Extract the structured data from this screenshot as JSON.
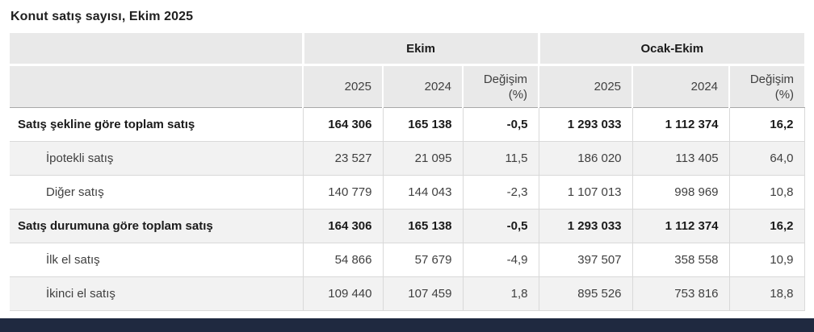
{
  "page": {
    "title": "Konut satış sayısı, Ekim 2025"
  },
  "colors": {
    "header_bg": "#e9e9e9",
    "stripe_bg": "#f2f2f2",
    "border": "#d9d9d9",
    "header_border": "#a8a8a8",
    "footer_bar": "#1f2940",
    "text": "#3f3f3f",
    "text_bold": "#1a1a1a"
  },
  "table": {
    "column_groups": [
      {
        "label": "Ekim"
      },
      {
        "label": "Ocak-Ekim"
      }
    ],
    "sub_headers": [
      {
        "label": "2025"
      },
      {
        "label": "2024"
      },
      {
        "line1": "Değişim",
        "line2": "(%)"
      },
      {
        "label": "2025"
      },
      {
        "label": "2024"
      },
      {
        "line1": "Değişim",
        "line2": "(%)"
      }
    ],
    "rows": [
      {
        "label": "Satış şekline göre toplam satış",
        "bold": true,
        "indent": false,
        "values": [
          "164 306",
          "165 138",
          "-0,5",
          "1 293 033",
          "1 112 374",
          "16,2"
        ]
      },
      {
        "label": "İpotekli satış",
        "bold": false,
        "indent": true,
        "values": [
          "23 527",
          "21 095",
          "11,5",
          "186 020",
          "113 405",
          "64,0"
        ]
      },
      {
        "label": "Diğer satış",
        "bold": false,
        "indent": true,
        "values": [
          "140 779",
          "144 043",
          "-2,3",
          "1 107 013",
          "998 969",
          "10,8"
        ]
      },
      {
        "label": "Satış durumuna göre toplam satış",
        "bold": true,
        "indent": false,
        "values": [
          "164 306",
          "165 138",
          "-0,5",
          "1 293 033",
          "1 112 374",
          "16,2"
        ]
      },
      {
        "label": "İlk el satış",
        "bold": false,
        "indent": true,
        "values": [
          "54 866",
          "57 679",
          "-4,9",
          "397 507",
          "358 558",
          "10,9"
        ]
      },
      {
        "label": "İkinci el satış",
        "bold": false,
        "indent": true,
        "values": [
          "109 440",
          "107 459",
          "1,8",
          "895 526",
          "753 816",
          "18,8"
        ]
      }
    ]
  },
  "chart_data": {
    "type": "table",
    "title": "Konut satış sayısı, Ekim 2025",
    "column_groups": [
      "Ekim",
      "Ocak-Ekim"
    ],
    "columns": [
      "Ekim 2025",
      "Ekim 2024",
      "Ekim Değişim (%)",
      "Ocak-Ekim 2025",
      "Ocak-Ekim 2024",
      "Ocak-Ekim Değişim (%)"
    ],
    "rows": [
      {
        "label": "Satış şekline göre toplam satış",
        "values": [
          164306,
          165138,
          -0.5,
          1293033,
          1112374,
          16.2
        ]
      },
      {
        "label": "İpotekli satış",
        "values": [
          23527,
          21095,
          11.5,
          186020,
          113405,
          64.0
        ]
      },
      {
        "label": "Diğer satış",
        "values": [
          140779,
          144043,
          -2.3,
          1107013,
          998969,
          10.8
        ]
      },
      {
        "label": "Satış durumuna göre toplam satış",
        "values": [
          164306,
          165138,
          -0.5,
          1293033,
          1112374,
          16.2
        ]
      },
      {
        "label": "İlk el satış",
        "values": [
          54866,
          57679,
          -4.9,
          397507,
          358558,
          10.9
        ]
      },
      {
        "label": "İkinci el satış",
        "values": [
          109440,
          107459,
          1.8,
          895526,
          753816,
          18.8
        ]
      }
    ],
    "legend_position": "none",
    "grid": true
  }
}
